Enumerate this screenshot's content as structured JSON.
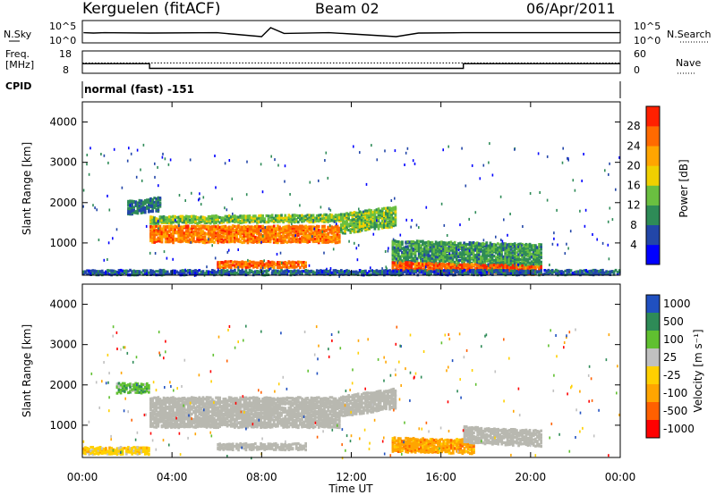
{
  "header": {
    "station": "Kerguelen (fitACF)",
    "beam": "Beam 02",
    "date": "06/Apr/2011"
  },
  "left_labels": {
    "nsky": "N.Sky",
    "freq_line1": "Freq.",
    "freq_line2": "[MHz]",
    "cpid": "CPID"
  },
  "right_labels": {
    "nsearch": "N.Search",
    "nave": "Nave"
  },
  "cpid_text": "normal (fast) -151",
  "colors": {
    "power": [
      "#0000ff",
      "#2246a8",
      "#2e8b57",
      "#6abf40",
      "#f0d000",
      "#ffa500",
      "#ff6a00",
      "#ff2000"
    ],
    "velocity": [
      "#2050c0",
      "#2e8b57",
      "#60c030",
      "#c0c0c0",
      "#ffd000",
      "#ffa500",
      "#ff6000",
      "#ff0000"
    ],
    "ground_scatter": "#b8b8b0"
  },
  "chart_data": [
    {
      "type": "line",
      "panel": "noise",
      "ylabel_left": "N.Sky",
      "ylabel_right": "N.Search",
      "yticks_left": [
        "10^5",
        "10^0"
      ],
      "yticks_right": [
        "10^5",
        "10^0"
      ],
      "series": [
        {
          "points": [
            [
              0.05,
              0.42
            ],
            [
              0.5,
              0.4
            ],
            [
              1,
              0.42
            ],
            [
              3,
              0.4
            ],
            [
              6,
              0.42
            ],
            [
              8,
              0.2
            ],
            [
              8.4,
              0.7
            ],
            [
              9,
              0.38
            ],
            [
              11,
              0.42
            ],
            [
              12,
              0.35
            ],
            [
              14,
              0.2
            ],
            [
              15,
              0.4
            ],
            [
              17,
              0.42
            ],
            [
              20,
              0.42
            ],
            [
              24,
              0.42
            ]
          ]
        }
      ]
    },
    {
      "type": "line",
      "panel": "frequency",
      "ylabel_left": "Freq. [MHz]",
      "ylabel_right": "Nave",
      "yticks_left": [
        "18",
        "8"
      ],
      "yticks_right": [
        "60",
        "0"
      ],
      "series": [
        {
          "style": "solid",
          "points": [
            [
              0,
              12.3
            ],
            [
              3,
              12.3
            ],
            [
              3,
              10.2
            ],
            [
              17,
              10.2
            ],
            [
              17,
              12.3
            ],
            [
              24,
              12.3
            ]
          ]
        },
        {
          "style": "dotted",
          "points": [
            [
              0,
              12.6
            ],
            [
              24,
              12.6
            ]
          ]
        }
      ]
    },
    {
      "type": "heatmap",
      "panel": "power",
      "xlabel": "",
      "ylabel": "Slant Range [km]",
      "xlim": [
        0,
        24
      ],
      "ylim": [
        200,
        4500
      ],
      "yticks": [
        1000,
        2000,
        3000,
        4000
      ],
      "colorbar": {
        "label": "Power [dB]",
        "ticks": [
          4,
          8,
          12,
          16,
          20,
          24,
          28
        ],
        "range": [
          0,
          32
        ]
      },
      "regions": [
        {
          "x": [
            3.0,
            11.5
          ],
          "y_center": [
            1250,
            1250
          ],
          "thickness": 420,
          "value": 25
        },
        {
          "x": [
            3.0,
            11.5
          ],
          "y_center": [
            1600,
            1650
          ],
          "thickness": 180,
          "value": 14
        },
        {
          "x": [
            2.0,
            3.5
          ],
          "y_center": [
            1900,
            2000
          ],
          "thickness": 350,
          "value": 8
        },
        {
          "x": [
            11.5,
            14.0
          ],
          "y_center": [
            1500,
            1700
          ],
          "thickness": 500,
          "value": 14
        },
        {
          "x": [
            6.0,
            10.0
          ],
          "y_center": [
            500,
            500
          ],
          "thickness": 160,
          "value": 26
        },
        {
          "x": [
            13.8,
            20.5
          ],
          "y_center": [
            800,
            700
          ],
          "thickness": 600,
          "value": 11
        },
        {
          "x": [
            13.8,
            20.5
          ],
          "y_center": [
            450,
            350
          ],
          "thickness": 220,
          "value": 27
        },
        {
          "x": [
            0.0,
            24.0
          ],
          "y_center": [
            300,
            300
          ],
          "thickness": 120,
          "value": 7
        }
      ]
    },
    {
      "type": "heatmap",
      "panel": "velocity",
      "xlabel": "Time UT",
      "ylabel": "Slant Range [km]",
      "xlim": [
        0,
        24
      ],
      "ylim": [
        200,
        4500
      ],
      "yticks": [
        1000,
        2000,
        3000,
        4000
      ],
      "xticks": [
        "00:00",
        "04:00",
        "08:00",
        "12:00",
        "16:00",
        "20:00",
        "00:00"
      ],
      "colorbar": {
        "label": "Velocity [m s⁻¹]",
        "ticks": [
          "1000",
          "500",
          "100",
          "25",
          "-25",
          "-100",
          "-500",
          "-1000"
        ]
      },
      "regions": [
        {
          "x": [
            3.0,
            11.5
          ],
          "y_center": [
            1350,
            1350
          ],
          "thickness": 750,
          "value": "ground"
        },
        {
          "x": [
            11.5,
            14.0
          ],
          "y_center": [
            1500,
            1700
          ],
          "thickness": 500,
          "value": "ground"
        },
        {
          "x": [
            13.8,
            17.5
          ],
          "y_center": [
            550,
            500
          ],
          "thickness": 350,
          "value": -100
        },
        {
          "x": [
            17.0,
            20.5
          ],
          "y_center": [
            800,
            700
          ],
          "thickness": 400,
          "value": "ground"
        },
        {
          "x": [
            1.5,
            3.0
          ],
          "y_center": [
            1950,
            1950
          ],
          "thickness": 250,
          "value": 100
        },
        {
          "x": [
            0.0,
            3.0
          ],
          "y_center": [
            400,
            400
          ],
          "thickness": 180,
          "value": -25
        },
        {
          "x": [
            6.0,
            10.0
          ],
          "y_center": [
            500,
            500
          ],
          "thickness": 160,
          "value": "ground"
        }
      ]
    }
  ]
}
